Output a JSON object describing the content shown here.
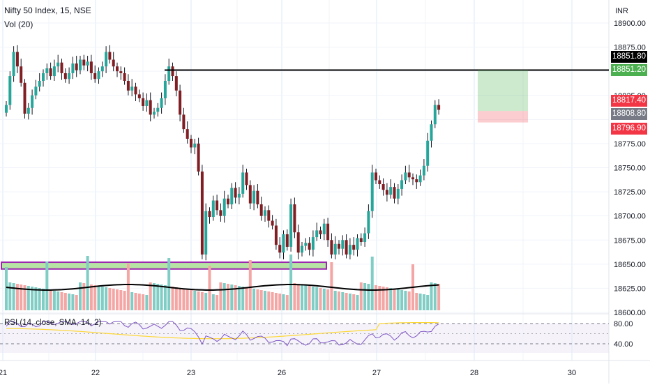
{
  "header": {
    "symbol_line": "Nifty 50 Index, 15, NSE",
    "volume_line": "Vol (20)",
    "rsi_line": "RSI (14, close, SMA, 14, 2)"
  },
  "axis": {
    "currency": "INR",
    "price_ticks": [
      "18900.00",
      "18875.00",
      "18825.00",
      "18775.00",
      "18750.00",
      "18725.00",
      "18700.00",
      "18675.00",
      "18650.00",
      "18625.00",
      "18600.00"
    ],
    "rsi_ticks": [
      "80.00",
      "40.00"
    ],
    "x_ticks": [
      "21",
      "22",
      "23",
      "26",
      "27",
      "28",
      "30"
    ]
  },
  "price_tags": [
    {
      "label": "18851.80",
      "value": 18851.8,
      "color": "#000000"
    },
    {
      "label": "18851.20",
      "value": 18851.2,
      "color": "#4caf50"
    },
    {
      "label": "18817.40",
      "value": 18817.4,
      "color": "#f23645"
    },
    {
      "label": "18808.80",
      "value": 18808.8,
      "color": "#787b86"
    },
    {
      "label": "18796.90",
      "value": 18796.9,
      "color": "#f23645"
    }
  ],
  "colors": {
    "up": "#26a69a",
    "down": "#ef5350",
    "candle_up_body": "#26a69a",
    "candle_down_body": "#7f1e23",
    "rsi": "#7e57c2",
    "rsi_ma": "#fdd835",
    "vol_up": "#7fcdc4",
    "vol_down": "#f4a6a4"
  },
  "chart_data": {
    "type": "candlestick",
    "symbol": "Nifty 50 Index",
    "interval": "15",
    "exchange": "NSE",
    "x_categories": [
      "21",
      "22",
      "23",
      "26",
      "27",
      "28",
      "30"
    ],
    "ylim": [
      18595,
      18910
    ],
    "horizontal_line": 18851.2,
    "position_box": {
      "entry": 18808.8,
      "target": 18851.2,
      "stop": 18796.9
    },
    "support_zone": [
      18645,
      18652
    ],
    "sessions": [
      {
        "day": "21",
        "closes": [
          18815,
          18845,
          18870,
          18855,
          18838,
          18806,
          18812,
          18825,
          18834,
          18840,
          18848,
          18853,
          18845,
          18855,
          18859,
          18848,
          18842,
          18848,
          18858,
          18851,
          18862,
          18856,
          18860,
          18848,
          18842,
          18850
        ]
      },
      {
        "day": "22",
        "closes": [
          18855,
          18870,
          18862,
          18855,
          18850,
          18848,
          18840,
          18830,
          18834,
          18826,
          18822,
          18814,
          18820,
          18805,
          18808,
          18812,
          18822,
          18840,
          18855,
          18845,
          18830,
          18805,
          18790,
          18780,
          18771,
          18775
        ]
      },
      {
        "day": "23",
        "closes": [
          18746,
          18660,
          18705,
          18699,
          18716,
          18706,
          18700,
          18718,
          18712,
          18729,
          18719,
          18723,
          18745,
          18732,
          18713,
          18726,
          18712,
          18700,
          18706,
          18695,
          18690,
          18670,
          18662,
          18681
        ]
      },
      {
        "day": "26",
        "closes": [
          18668,
          18712,
          18683,
          18662,
          18669,
          18672,
          18665,
          18678,
          18685,
          18681,
          18692,
          18675,
          18660,
          18671,
          18666,
          18675,
          18660,
          18670,
          18665,
          18677,
          18673,
          18682,
          18705
        ]
      },
      {
        "day": "27",
        "closes": [
          18745,
          18737,
          18733,
          18727,
          18722,
          18730,
          18718,
          18728,
          18737,
          18745,
          18740,
          18738,
          18735,
          18742,
          18752,
          18778,
          18795,
          18815,
          18810
        ]
      }
    ],
    "rsi": {
      "period": 14,
      "upper": 80,
      "lower": 40,
      "range": [
        25,
        90
      ]
    }
  }
}
